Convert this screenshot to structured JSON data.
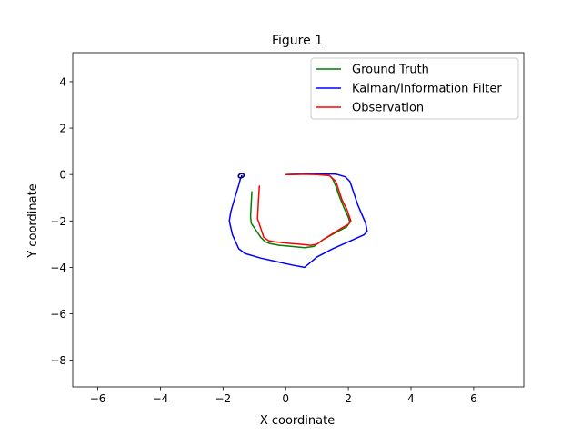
{
  "chart_data": {
    "type": "line",
    "title": "Figure 1",
    "xlabel": "X coordinate",
    "ylabel": "Y coordinate",
    "xlim": [
      -6.8,
      7.6
    ],
    "ylim": [
      -9.15,
      5.25
    ],
    "xticks": [
      -6,
      -4,
      -2,
      0,
      2,
      4,
      6
    ],
    "yticks": [
      -8,
      -6,
      -4,
      -2,
      0,
      2,
      4
    ],
    "xtick_labels": [
      "−6",
      "−4",
      "−2",
      "0",
      "2",
      "4",
      "6"
    ],
    "ytick_labels": [
      "−8",
      "−6",
      "−4",
      "−2",
      "0",
      "2",
      "4"
    ],
    "grid": false,
    "legend_position": "top-right",
    "series": [
      {
        "name": "Ground Truth",
        "color": "#008000",
        "x": [
          0.0,
          0.5,
          1.0,
          1.4,
          1.5,
          1.6,
          1.7,
          1.85,
          2.0,
          2.05,
          1.95,
          1.6,
          1.2,
          1.0,
          0.9,
          0.6,
          0.2,
          -0.2,
          -0.5,
          -0.65,
          -0.8,
          -0.95,
          -1.1,
          -1.12,
          -1.08
        ],
        "y": [
          0.0,
          0.02,
          0.02,
          -0.05,
          -0.2,
          -0.5,
          -0.9,
          -1.4,
          -1.85,
          -2.05,
          -2.25,
          -2.5,
          -2.8,
          -3.0,
          -3.1,
          -3.15,
          -3.1,
          -3.05,
          -2.98,
          -2.9,
          -2.7,
          -2.4,
          -2.1,
          -1.8,
          -0.75
        ]
      },
      {
        "name": "Kalman/Information Filter",
        "color": "#0000ff",
        "x": [
          0.0,
          0.5,
          1.0,
          1.6,
          1.9,
          2.05,
          2.15,
          2.3,
          2.55,
          2.6,
          2.5,
          2.0,
          1.5,
          1.0,
          0.6,
          0.2,
          -0.3,
          -0.8,
          -1.3,
          -1.5,
          -1.7,
          -1.8,
          -1.75,
          -1.6,
          -1.5,
          -1.45,
          -1.4
        ],
        "y": [
          0.0,
          0.02,
          0.03,
          0.02,
          -0.1,
          -0.3,
          -0.7,
          -1.3,
          -2.1,
          -2.45,
          -2.6,
          -2.9,
          -3.2,
          -3.55,
          -4.0,
          -3.9,
          -3.75,
          -3.6,
          -3.4,
          -3.2,
          -2.6,
          -2.0,
          -1.6,
          -0.9,
          -0.45,
          -0.2,
          -0.05
        ]
      },
      {
        "name": "Observation",
        "color": "#ff0000",
        "x": [
          0.0,
          0.5,
          1.0,
          1.4,
          1.6,
          1.7,
          1.8,
          1.95,
          2.08,
          2.0,
          1.8,
          1.5,
          1.2,
          1.0,
          0.8,
          0.4,
          0.0,
          -0.35,
          -0.55,
          -0.7,
          -0.9,
          -0.87,
          -0.84
        ],
        "y": [
          0.0,
          0.01,
          0.0,
          -0.05,
          -0.3,
          -0.7,
          -1.1,
          -1.5,
          -2.0,
          -2.15,
          -2.3,
          -2.55,
          -2.8,
          -3.0,
          -3.05,
          -3.0,
          -2.95,
          -2.9,
          -2.85,
          -2.7,
          -1.9,
          -1.1,
          -0.5
        ]
      }
    ],
    "marker": {
      "name": "robot-position-marker",
      "x": -1.42,
      "y": -0.05,
      "color": "#000080"
    }
  }
}
